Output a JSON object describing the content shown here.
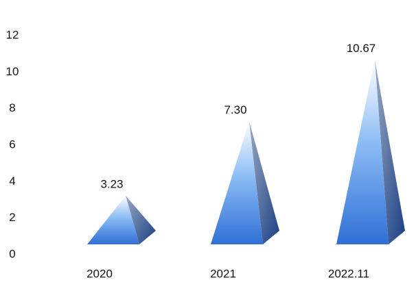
{
  "chart_data": {
    "type": "pyramid",
    "categories": [
      "2020",
      "2021",
      "2022.11"
    ],
    "values": [
      3.23,
      7.3,
      10.67
    ],
    "value_labels": [
      "3.23",
      "7.30",
      "10.67"
    ],
    "color": "#2f6fd6",
    "ylim": [
      0,
      12
    ],
    "yticks": [
      0,
      2,
      4,
      6,
      8,
      10,
      12
    ]
  }
}
